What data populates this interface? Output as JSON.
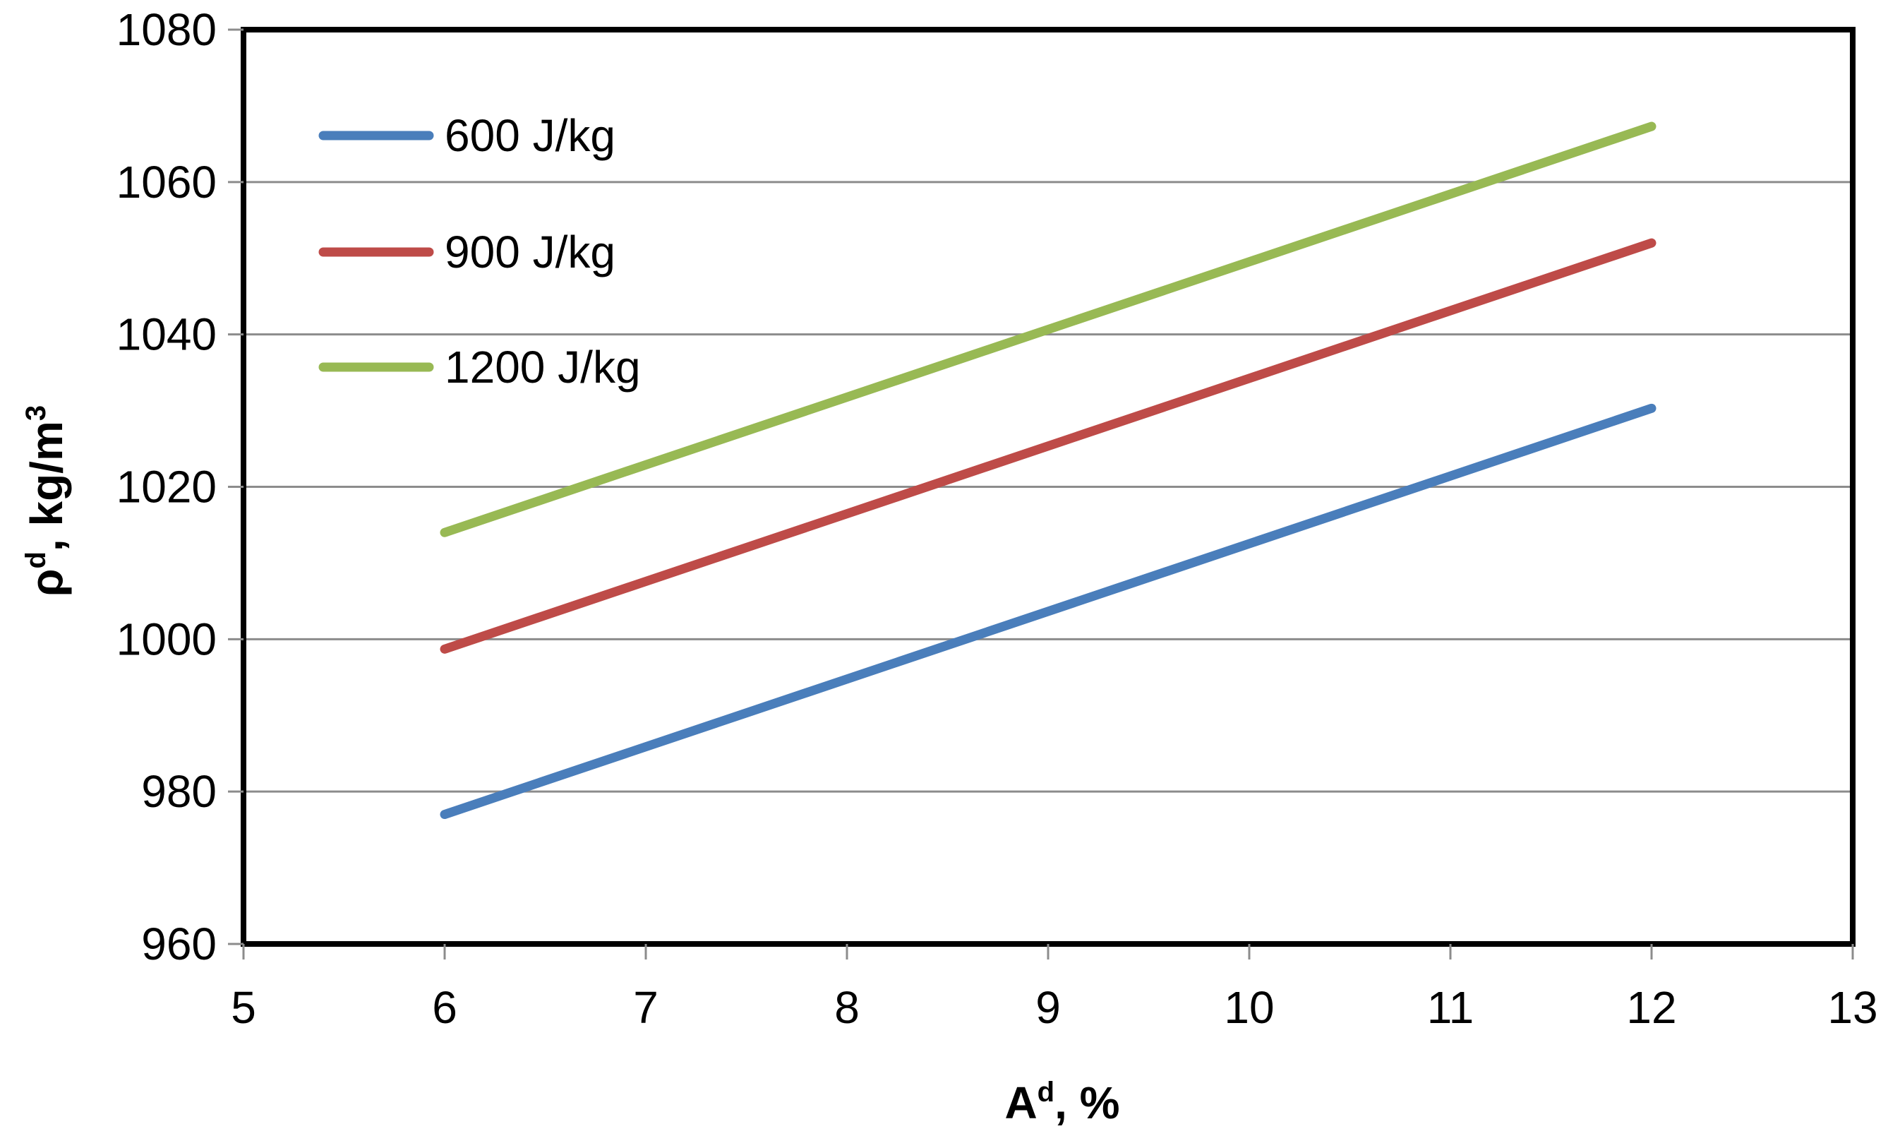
{
  "chart_data": {
    "type": "line",
    "title": "",
    "xlabel": {
      "base": "A",
      "sup": "d",
      "suffix": ", %"
    },
    "ylabel": {
      "base": "ρ",
      "sup": "d",
      "mid": ", kg/m",
      "sup2": "3"
    },
    "xlim": [
      5,
      13
    ],
    "ylim": [
      960,
      1080
    ],
    "xticks": [
      5,
      6,
      7,
      8,
      9,
      10,
      11,
      12,
      13
    ],
    "yticks": [
      960,
      980,
      1000,
      1020,
      1040,
      1060,
      1080
    ],
    "grid": "horizontal",
    "legend_position": "top-left",
    "series": [
      {
        "name": "600 J/kg",
        "color": "#4a7ebb",
        "x": [
          6,
          12
        ],
        "y": [
          977,
          1030.3
        ]
      },
      {
        "name": "900 J/kg",
        "color": "#be4b48",
        "x": [
          6,
          12
        ],
        "y": [
          998.7,
          1052
        ]
      },
      {
        "name": "1200 J/kg",
        "color": "#98b954",
        "x": [
          6,
          12
        ],
        "y": [
          1014,
          1067.3
        ]
      }
    ]
  }
}
